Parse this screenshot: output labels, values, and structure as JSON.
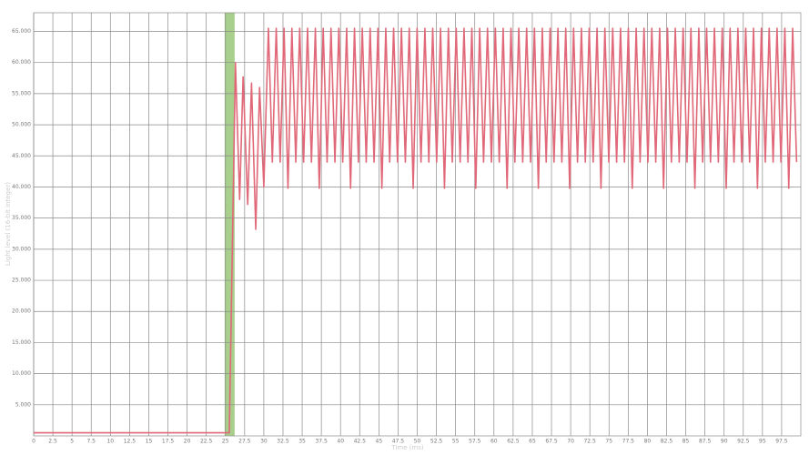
{
  "chart_data": {
    "type": "line",
    "y_label": "Light level (16-bit integer)",
    "x_label": "Time (ms)",
    "xlim": [
      0,
      100
    ],
    "ylim": [
      0,
      68000
    ],
    "xticks": [
      0,
      2.5,
      5,
      7.5,
      10,
      12.5,
      15,
      17.5,
      20,
      22.5,
      25,
      27.5,
      30,
      32.5,
      35,
      37.5,
      40,
      42.5,
      45,
      47.5,
      50,
      52.5,
      55,
      57.5,
      60,
      62.5,
      65,
      67.5,
      70,
      72.5,
      75,
      77.5,
      80,
      82.5,
      85,
      87.5,
      90,
      92.5,
      95,
      97.5
    ],
    "yticks": [
      {
        "value": 5000,
        "label": "5.000"
      },
      {
        "value": 10000,
        "label": "10.000"
      },
      {
        "value": 15000,
        "label": "15.000"
      },
      {
        "value": 20000,
        "label": "20.000"
      },
      {
        "value": 25000,
        "label": "25.000"
      },
      {
        "value": 30000,
        "label": "30.000"
      },
      {
        "value": 35000,
        "label": "35.000"
      },
      {
        "value": 40000,
        "label": "40.000"
      },
      {
        "value": 45000,
        "label": "45.000"
      },
      {
        "value": 50000,
        "label": "50.000"
      },
      {
        "value": 55000,
        "label": "55.000"
      },
      {
        "value": 60000,
        "label": "60.000"
      },
      {
        "value": 65000,
        "label": "65.000"
      }
    ],
    "grid": true,
    "highlight": [
      24.9,
      26.2
    ],
    "highlight_color": "#a8cf8c",
    "series": [
      {
        "color": "#e06878",
        "x": [
          0,
          25.5,
          26.3,
          26.85,
          27.3,
          27.9,
          28.4,
          28.95,
          29.45,
          30.0,
          30.6,
          31.11,
          31.62,
          32.13,
          32.64,
          33.15,
          33.66,
          34.17,
          34.68,
          35.19,
          35.7,
          36.21,
          36.72,
          37.23,
          37.74,
          38.25,
          38.76,
          39.27,
          39.78,
          40.29,
          40.8,
          41.31,
          41.82,
          42.33,
          42.84,
          43.35,
          43.86,
          44.37,
          44.88,
          45.39,
          45.9,
          46.41,
          46.92,
          47.43,
          47.94,
          48.45,
          48.96,
          49.47,
          49.98,
          50.49,
          51.0,
          51.51,
          52.02,
          52.53,
          53.04,
          53.55,
          54.06,
          54.57,
          55.08,
          55.59,
          56.1,
          56.61,
          57.12,
          57.63,
          58.14,
          58.65,
          59.16,
          59.67,
          60.18,
          60.69,
          61.2,
          61.71,
          62.22,
          62.73,
          63.24,
          63.75,
          64.26,
          64.77,
          65.28,
          65.79,
          66.3,
          66.81,
          67.32,
          67.83,
          68.34,
          68.85,
          69.36,
          69.87,
          70.38,
          70.89,
          71.4,
          71.91,
          72.42,
          72.93,
          73.44,
          73.95,
          74.46,
          74.97,
          75.48,
          75.99,
          76.5,
          77.01,
          77.52,
          78.03,
          78.54,
          79.05,
          79.56,
          80.07,
          80.58,
          81.09,
          81.6,
          82.11,
          82.62,
          83.13,
          83.64,
          84.15,
          84.66,
          85.17,
          85.68,
          86.19,
          86.7,
          87.21,
          87.72,
          88.23,
          88.74,
          89.25,
          89.76,
          90.27,
          90.78,
          91.29,
          91.8,
          92.31,
          92.82,
          93.33,
          93.84,
          94.35,
          94.86,
          95.37,
          95.88,
          96.39,
          96.9,
          97.41,
          97.92,
          98.43,
          98.94,
          99.45
        ],
        "values": [
          500,
          500,
          60000,
          38000,
          57700,
          37200,
          56700,
          33200,
          56000,
          40000,
          65500,
          44000,
          65500,
          44000,
          65500,
          39800,
          65500,
          44000,
          65500,
          44000,
          65500,
          44000,
          65500,
          39800,
          65500,
          44000,
          65500,
          44000,
          65500,
          44000,
          65500,
          39800,
          65500,
          44000,
          65500,
          44000,
          65500,
          44000,
          65500,
          39800,
          65500,
          44000,
          65500,
          44000,
          65500,
          44000,
          65500,
          39800,
          65500,
          44000,
          65500,
          44000,
          65500,
          44000,
          65500,
          39800,
          65500,
          44000,
          65500,
          44000,
          65500,
          44000,
          65500,
          39800,
          65500,
          44000,
          65500,
          44000,
          65500,
          44000,
          65500,
          39800,
          65500,
          44000,
          65500,
          44000,
          65500,
          44000,
          65500,
          39800,
          65500,
          44000,
          65500,
          44000,
          65500,
          44000,
          65500,
          39800,
          65500,
          44000,
          65500,
          44000,
          65500,
          44000,
          65500,
          39800,
          65500,
          44000,
          65500,
          44000,
          65500,
          44000,
          65500,
          39800,
          65500,
          44000,
          65500,
          44000,
          65500,
          44000,
          65500,
          39800,
          65500,
          44000,
          65500,
          44000,
          65500,
          44000,
          65500,
          39800,
          65500,
          44000,
          65500,
          44000,
          65500,
          44000,
          65500,
          39800,
          65500,
          44000,
          65500,
          44000,
          65500,
          44000,
          65500,
          39800,
          65500,
          44000,
          65500,
          44000,
          65500,
          44000,
          65500,
          39800,
          65500,
          44000
        ]
      }
    ]
  }
}
